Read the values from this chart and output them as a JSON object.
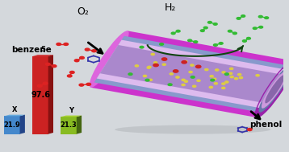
{
  "bg_color": "#d4d8dc",
  "bar_s_label": "S",
  "bar_s_value": "97.6",
  "bar_s_front": "#cc2222",
  "bar_s_side": "#881111",
  "bar_s_top": "#cc2222",
  "bar_x_label": "X",
  "bar_x_value": "21.9",
  "bar_x_front": "#4488cc",
  "bar_x_side": "#224488",
  "bar_x_top": "#66aadd",
  "bar_y_label": "Y",
  "bar_y_value": "21.3",
  "bar_y_front": "#88bb22",
  "bar_y_side": "#446611",
  "bar_y_top": "#aad433",
  "h2_label": "H₂",
  "o2_label": "O₂",
  "benzene_label": "benzene",
  "phenol_label": "phenol",
  "cyl_color": "#cc33cc",
  "cyl_dark": "#9922aa",
  "cyl_light": "#dd66dd",
  "inner_blue": "#8899cc",
  "inner_light": "#ddbbee",
  "inner_pink": "#cc88cc",
  "arrow_color": "#114411",
  "o2_color": "#dd2222",
  "h2_color": "#33bb33",
  "hex_color": "#3333aa",
  "yellow_dot": "#ddcc44",
  "red_dot": "#cc2222"
}
